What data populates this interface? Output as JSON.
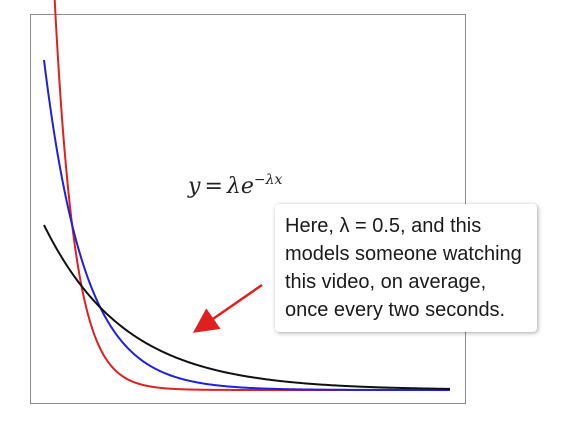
{
  "chart_data": {
    "type": "line",
    "title": "",
    "xlabel": "",
    "ylabel": "",
    "grid": false,
    "legend": "none",
    "formula": {
      "lhs": "y",
      "equals": "=",
      "base": "λe",
      "exponent": "−λx"
    },
    "x_range": [
      0,
      10
    ],
    "series": [
      {
        "color": "#e02020",
        "lambda": 2.0,
        "x": [
          0.05,
          0.2,
          0.4,
          0.6,
          0.8,
          1.0,
          1.5,
          2.0,
          3.0,
          4.0,
          6.0,
          8.0,
          10.0
        ],
        "y": [
          1.81,
          1.34,
          0.9,
          0.6,
          0.4,
          0.27,
          0.1,
          0.04,
          0.005,
          0.001,
          0.0,
          0.0,
          0.0
        ]
      },
      {
        "color": "#2020e0",
        "lambda": 1.0,
        "x": [
          0.0,
          0.25,
          0.5,
          0.75,
          1.0,
          1.5,
          2.0,
          3.0,
          4.0,
          5.0,
          6.0,
          8.0,
          10.0
        ],
        "y": [
          1.0,
          0.78,
          0.61,
          0.47,
          0.37,
          0.22,
          0.14,
          0.05,
          0.018,
          0.007,
          0.002,
          0.0,
          0.0
        ]
      },
      {
        "color": "#111111",
        "lambda": 0.5,
        "x": [
          0.0,
          0.5,
          1.0,
          1.5,
          2.0,
          3.0,
          4.0,
          5.0,
          6.0,
          7.0,
          8.0,
          9.0,
          10.0
        ],
        "y": [
          0.5,
          0.39,
          0.3,
          0.24,
          0.18,
          0.11,
          0.068,
          0.041,
          0.025,
          0.015,
          0.009,
          0.006,
          0.003
        ]
      }
    ],
    "annotation": {
      "text": "Here, λ = 0.5, and this models someone watching this video, on average, once every two seconds.",
      "arrow_color": "#e02020"
    }
  }
}
